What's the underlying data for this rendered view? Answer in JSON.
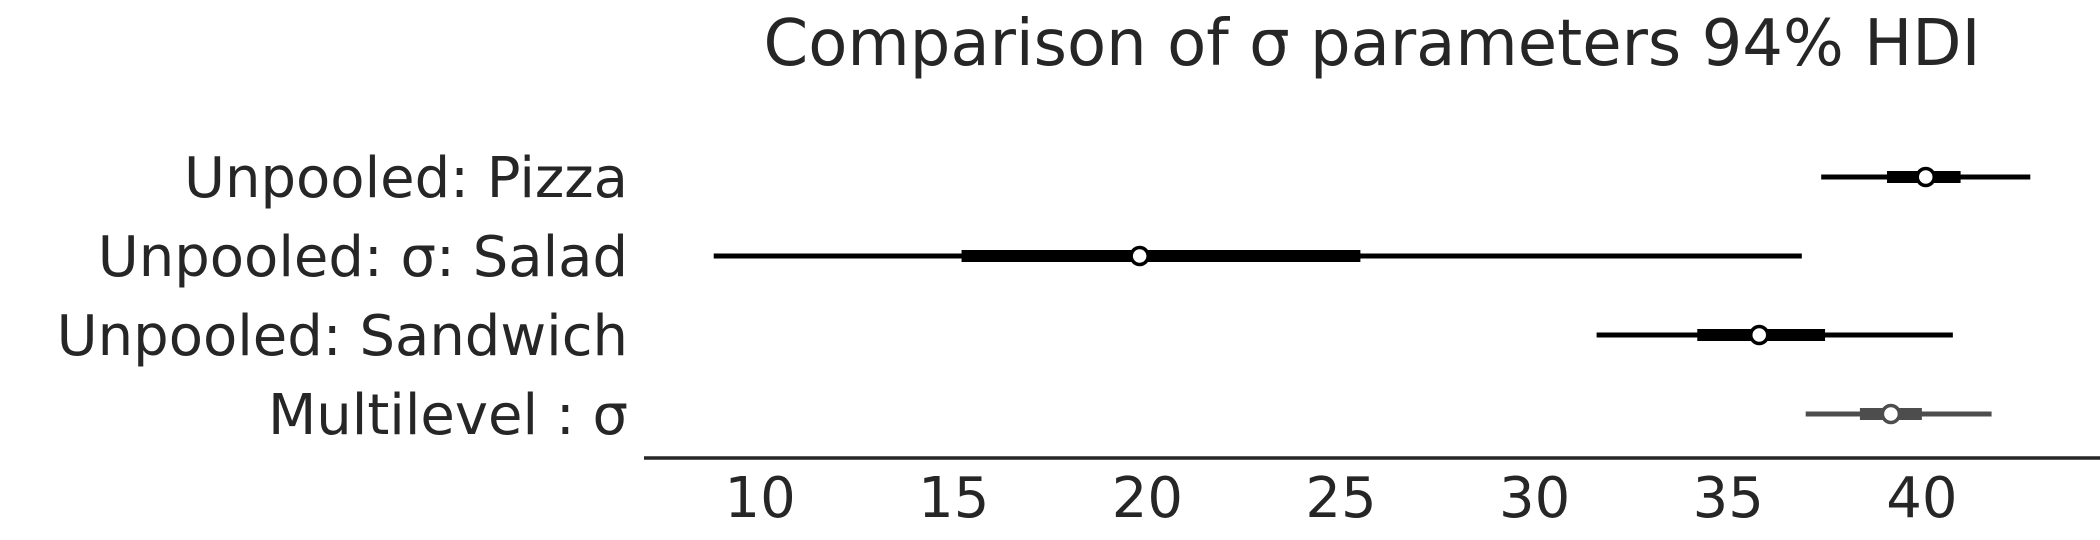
{
  "chart_data": {
    "type": "forest",
    "title": "Comparison of σ parameters 94% HDI",
    "xlabel": "",
    "ylabel": "",
    "xlim": [
      7.0,
      44.6
    ],
    "x_ticks": [
      10,
      15,
      20,
      25,
      30,
      35,
      40
    ],
    "x_tick_labels": [
      "10",
      "15",
      "20",
      "25",
      "30",
      "35",
      "40"
    ],
    "grid": false,
    "legend": "none",
    "series": [
      {
        "name": "Unpooled:  Pizza",
        "hdi_94": [
          37.4,
          42.8
        ],
        "iqr": [
          39.1,
          41.0
        ],
        "point": 40.1,
        "color": "#000000"
      },
      {
        "name": "Unpooled: σ: Salad",
        "hdi_94": [
          8.8,
          36.9
        ],
        "iqr": [
          15.2,
          25.5
        ],
        "point": 19.8,
        "color": "#000000"
      },
      {
        "name": "Unpooled:  Sandwich",
        "hdi_94": [
          31.6,
          40.8
        ],
        "iqr": [
          34.2,
          37.5
        ],
        "point": 35.8,
        "color": "#000000"
      },
      {
        "name": "Multilevel : σ",
        "hdi_94": [
          37.0,
          41.8
        ],
        "iqr": [
          38.4,
          40.0
        ],
        "point": 39.2,
        "color": "#4d4d4d"
      }
    ]
  }
}
